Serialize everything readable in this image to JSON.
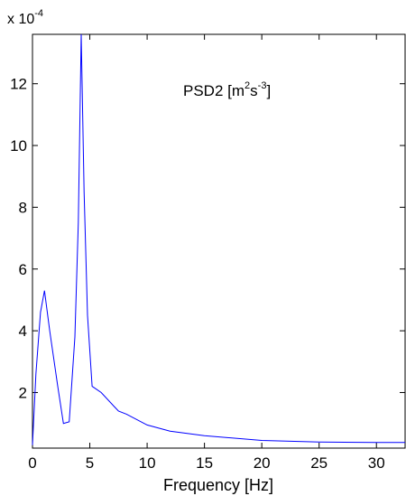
{
  "chart_data": {
    "type": "line",
    "title": "",
    "xlabel": "Frequency [Hz]",
    "ylabel": "",
    "annotation": {
      "base": "PSD2 [m",
      "sup1": "2",
      "mid": "s",
      "sup2": "-3",
      "end": "]"
    },
    "y_scale_label": {
      "base": "x 10",
      "exponent": "-4"
    },
    "xlim": [
      0,
      32.5
    ],
    "ylim": [
      0.2,
      13.6
    ],
    "x_ticks": [
      0,
      5,
      10,
      15,
      20,
      25,
      30
    ],
    "x_tick_labels": [
      "0",
      "5",
      "10",
      "15",
      "20",
      "25",
      "30"
    ],
    "y_ticks": [
      2,
      4,
      6,
      8,
      10,
      12
    ],
    "y_tick_labels": [
      "2",
      "4",
      "6",
      "8",
      "10",
      "12"
    ],
    "grid": false,
    "series": [
      {
        "color": "#0000ff",
        "x": [
          0.0,
          0.3,
          0.7,
          1.05,
          1.5,
          2.2,
          2.7,
          3.2,
          3.7,
          4.0,
          4.25,
          4.5,
          4.8,
          5.2,
          6.0,
          7.5,
          8.2,
          10.0,
          12.0,
          15.0,
          20.0,
          25.0,
          30.0,
          32.5
        ],
        "values": [
          0.3,
          2.6,
          4.6,
          5.3,
          4.0,
          2.2,
          1.0,
          1.05,
          3.8,
          7.5,
          13.6,
          8.5,
          4.5,
          2.2,
          2.0,
          1.4,
          1.3,
          0.95,
          0.75,
          0.6,
          0.45,
          0.4,
          0.38,
          0.38
        ]
      }
    ]
  }
}
